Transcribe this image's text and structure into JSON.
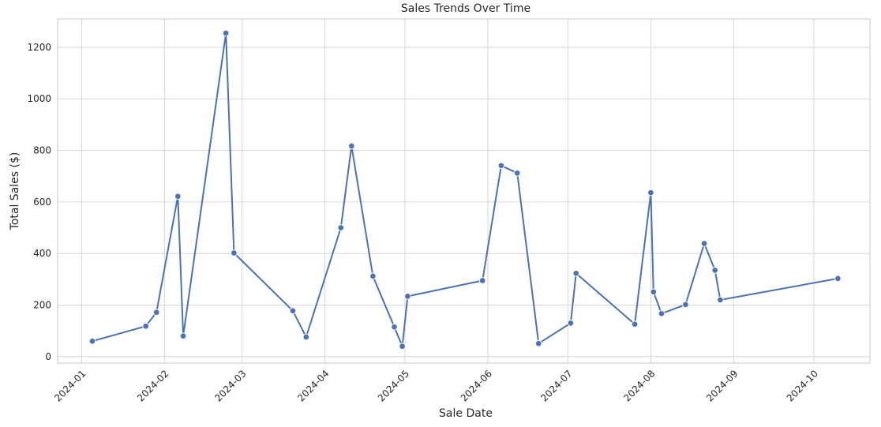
{
  "chart_data": {
    "type": "line",
    "title": "Sales Trends Over Time",
    "xlabel": "Sale Date",
    "ylabel": "Total Sales ($)",
    "x_axis_type": "date",
    "xlim": [
      "2023-12-23",
      "2024-10-22"
    ],
    "ylim": [
      -25,
      1310
    ],
    "x_ticks": [
      "2024-01-01",
      "2024-02-01",
      "2024-03-01",
      "2024-04-01",
      "2024-05-01",
      "2024-06-01",
      "2024-07-01",
      "2024-08-01",
      "2024-09-01",
      "2024-10-01"
    ],
    "x_tick_labels": [
      "2024-01",
      "2024-02",
      "2024-03",
      "2024-04",
      "2024-05",
      "2024-06",
      "2024-07",
      "2024-08",
      "2024-09",
      "2024-10"
    ],
    "y_ticks": [
      0,
      200,
      400,
      600,
      800,
      1000,
      1200
    ],
    "y_tick_labels": [
      "0",
      "200",
      "400",
      "600",
      "800",
      "1000",
      "1200"
    ],
    "grid": true,
    "color": "#4C72B0",
    "series": [
      {
        "x": [
          "2024-01-05",
          "2024-01-25",
          "2024-01-29",
          "2024-02-06",
          "2024-02-08",
          "2024-02-24",
          "2024-02-27",
          "2024-03-20",
          "2024-03-25",
          "2024-04-07",
          "2024-04-11",
          "2024-04-19",
          "2024-04-27",
          "2024-04-30",
          "2024-05-02",
          "2024-05-30",
          "2024-06-06",
          "2024-06-12",
          "2024-06-20",
          "2024-07-02",
          "2024-07-04",
          "2024-07-26",
          "2024-08-01",
          "2024-08-02",
          "2024-08-05",
          "2024-08-14",
          "2024-08-21",
          "2024-08-25",
          "2024-08-27",
          "2024-10-10"
        ],
        "y": [
          60,
          118,
          172,
          622,
          80,
          1255,
          402,
          178,
          76,
          500,
          817,
          312,
          115,
          40,
          234,
          295,
          741,
          712,
          51,
          130,
          323,
          126,
          636,
          251,
          167,
          202,
          439,
          335,
          220,
          303
        ]
      }
    ]
  }
}
